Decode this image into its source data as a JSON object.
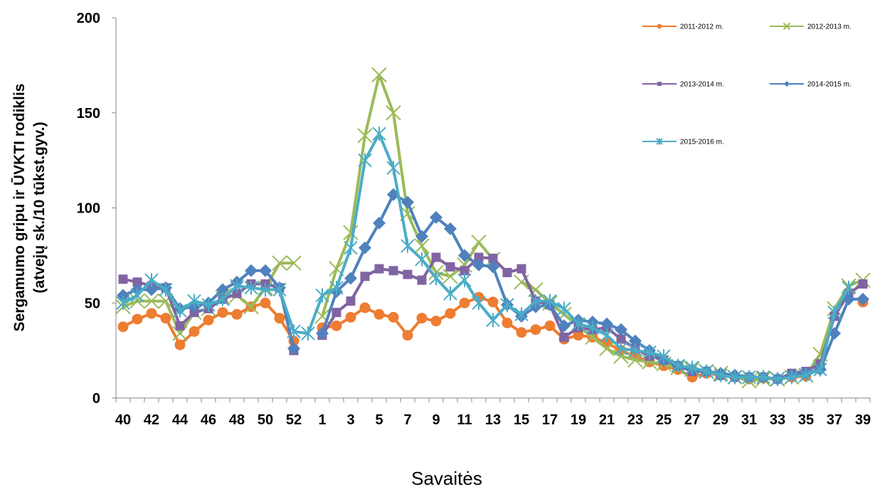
{
  "chart_data": {
    "type": "line",
    "title": "",
    "xlabel": "Savaitės",
    "ylabel_line1": "Sergamumo gripu ir ŪVKTI rodiklis",
    "ylabel_line2": "(atvejų sk./10 tūkst.gyv.)",
    "ylim": [
      0,
      200
    ],
    "yticks": [
      0,
      50,
      100,
      150,
      200
    ],
    "grid": false,
    "legend_position": "top-right",
    "x": [
      "40",
      "41",
      "42",
      "43",
      "44",
      "45",
      "46",
      "47",
      "48",
      "49",
      "50",
      "51",
      "52",
      "53",
      "1",
      "2",
      "3",
      "4",
      "5",
      "6",
      "7",
      "8",
      "9",
      "10",
      "11",
      "12",
      "13",
      "14",
      "15",
      "16",
      "17",
      "18",
      "19",
      "20",
      "21",
      "22",
      "23",
      "24",
      "25",
      "26",
      "27",
      "28",
      "29",
      "30",
      "31",
      "32",
      "33",
      "34",
      "35",
      "36",
      "37",
      "38",
      "39"
    ],
    "xtick_labels": [
      "40",
      "42",
      "44",
      "46",
      "48",
      "50",
      "52",
      "1",
      "3",
      "5",
      "7",
      "9",
      "11",
      "13",
      "15",
      "17",
      "19",
      "21",
      "23",
      "25",
      "27",
      "29",
      "31",
      "33",
      "35",
      "37",
      "39"
    ],
    "series": [
      {
        "name": "2011-2012 m.",
        "color": "#ED7D31",
        "marker": "circle",
        "values": [
          37.5,
          41.5,
          44.5,
          42,
          28,
          35,
          41,
          45,
          44,
          48,
          50,
          42,
          30,
          null,
          37,
          38,
          42.5,
          47.5,
          44,
          42.5,
          33,
          42,
          40.5,
          44.5,
          50,
          53,
          50.5,
          39.5,
          34.5,
          36,
          38,
          31,
          33,
          32,
          29,
          25,
          22,
          19,
          17,
          15,
          11,
          13,
          12,
          11,
          10,
          10.5,
          10,
          11,
          11.5,
          null,
          null,
          null,
          50.5
        ]
      },
      {
        "name": "2012-2013 m.",
        "color": "#9BBB59",
        "marker": "x",
        "values": [
          48,
          51,
          51,
          51,
          34,
          45,
          47,
          53,
          54,
          48,
          58,
          71,
          71,
          null,
          43,
          68,
          87,
          138,
          170,
          150,
          97,
          80,
          66,
          64,
          70,
          82,
          73,
          null,
          61,
          57,
          50,
          44,
          38,
          32,
          26,
          22,
          20,
          19,
          18,
          16,
          15,
          14,
          13,
          11,
          9,
          10,
          10,
          11,
          12,
          23,
          47,
          59,
          62
        ]
      },
      {
        "name": "2013-2014 m.",
        "color": "#8064A2",
        "marker": "square",
        "values": [
          62.5,
          61,
          59,
          58,
          38,
          45,
          47,
          52,
          55,
          60,
          60,
          58,
          25,
          null,
          33,
          45,
          51,
          64,
          68,
          67,
          65,
          62,
          74,
          69,
          67,
          74,
          73.5,
          66,
          68,
          51,
          49,
          32,
          37,
          36,
          37,
          31,
          26,
          22,
          20,
          17,
          14,
          14,
          12,
          11,
          11,
          11,
          10,
          13,
          14,
          18,
          43,
          55,
          60
        ]
      },
      {
        "name": "2014-2015 m.",
        "color": "#4F81BD",
        "marker": "diamond",
        "values": [
          54,
          57,
          57,
          58,
          47,
          48,
          50,
          57,
          61,
          67,
          67,
          58,
          26,
          null,
          34,
          56,
          63,
          79,
          92,
          107,
          103,
          85,
          95,
          89,
          75,
          70,
          69,
          49,
          43,
          48,
          49,
          38,
          41,
          40,
          39,
          36,
          30,
          25,
          20,
          17,
          15,
          14,
          13,
          12,
          11,
          11,
          10,
          12,
          13,
          15,
          34,
          52,
          52
        ]
      },
      {
        "name": "2015-2016 m.",
        "color": "#4BACC6",
        "marker": "star",
        "values": [
          50,
          54,
          62,
          57,
          46,
          51,
          49,
          52,
          59,
          58,
          57,
          57,
          35,
          34,
          54,
          58,
          79,
          125,
          139,
          121,
          80,
          73,
          63,
          55,
          62,
          50,
          41,
          49,
          44,
          51,
          51,
          47,
          39,
          37,
          33,
          26,
          25,
          24,
          22,
          17,
          16,
          14,
          12,
          11,
          11,
          11,
          10,
          11,
          12,
          15,
          45,
          58,
          null
        ]
      }
    ]
  }
}
